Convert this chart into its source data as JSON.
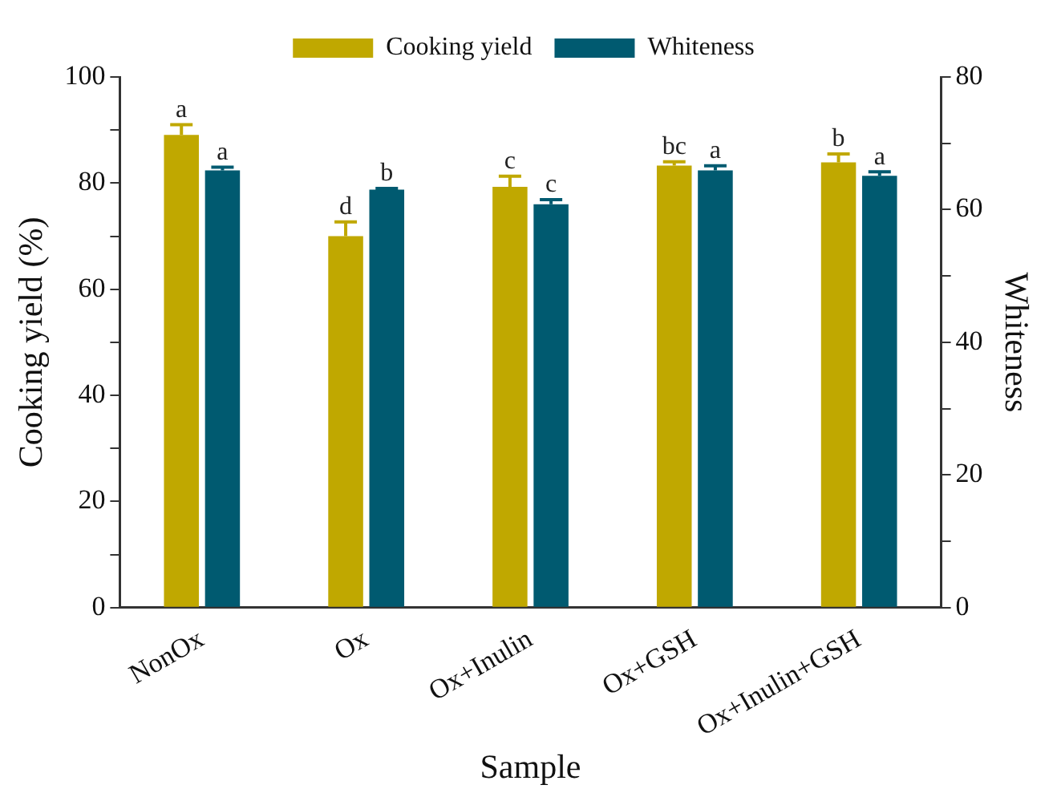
{
  "chart_data": {
    "type": "bar",
    "xlabel": "Sample",
    "ylabel": "Cooking yield (%)",
    "y2label": "Whiteness",
    "categories": [
      "NonOx",
      "Ox",
      "Ox+Inulin",
      "Ox+GSH",
      "Ox+Inulin+GSH"
    ],
    "series": [
      {
        "name": "Cooking yield",
        "color": "#c0a800",
        "values": [
          89.1,
          70.0,
          79.3,
          83.3,
          83.9
        ],
        "errors": [
          1.9,
          2.7,
          2.0,
          0.7,
          1.6
        ],
        "value_labels": [
          "a",
          "d",
          "c",
          "bc",
          "b"
        ]
      },
      {
        "name": "Whiteness",
        "color": "#005a70",
        "axis": "y2",
        "values": [
          65.9,
          63.0,
          60.8,
          65.9,
          65.1
        ],
        "errors": [
          0.5,
          0.2,
          0.7,
          0.7,
          0.6
        ],
        "value_labels": [
          "a",
          "b",
          "c",
          "a",
          "a"
        ]
      }
    ],
    "ylim": [
      0,
      100
    ],
    "yticks": [
      0,
      {
        "value": 10,
        "label": null
      },
      20,
      {
        "value": 30,
        "label": null
      },
      40,
      {
        "value": 50,
        "label": null
      },
      60,
      {
        "value": 70,
        "label": null
      },
      80,
      {
        "value": 90,
        "label": null
      },
      100
    ],
    "y2lim": [
      0,
      80
    ],
    "y2ticks": [
      0,
      {
        "value": 10,
        "label": null
      },
      20,
      {
        "value": 30,
        "label": null
      },
      40,
      {
        "value": 50,
        "label": null
      },
      60,
      {
        "value": 70,
        "label": null
      },
      80
    ],
    "legend": "top",
    "grid": false
  }
}
